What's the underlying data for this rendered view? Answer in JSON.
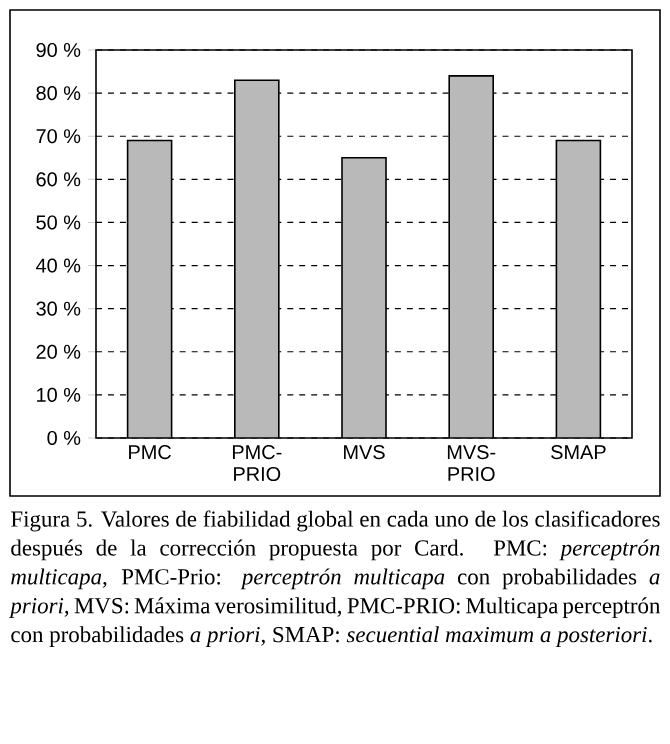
{
  "chart_data": {
    "type": "bar",
    "categories": [
      "PMC",
      "PMC-PRIO",
      "MVS",
      "MVS-PRIO",
      "SMAP"
    ],
    "values": [
      69,
      83,
      65,
      84,
      69
    ],
    "color": "#b9b9b9",
    "ylim": [
      0,
      90
    ],
    "yticks": [
      {
        "value": 0,
        "label": "0 %"
      },
      {
        "value": 10,
        "label": "10 %"
      },
      {
        "value": 20,
        "label": "20 %"
      },
      {
        "value": 30,
        "label": "30 %"
      },
      {
        "value": 40,
        "label": "40 %"
      },
      {
        "value": 50,
        "label": "50 %"
      },
      {
        "value": 60,
        "label": "60 %"
      },
      {
        "value": 70,
        "label": "70 %"
      },
      {
        "value": 80,
        "label": "80 %"
      },
      {
        "value": 90,
        "label": "90 %"
      }
    ],
    "grid": "y",
    "annotations": [
      "Figura 5. Valores de fiabilidad global en cada uno de los clasificadores después de la corrección propuesta por Card. PMC: *perceptrón multicapa*, PMC-Prio: *perceptrón multicapa* con probabilidades *a priori*, MVS: Máxima verosimilitud, PMC-PRIO: Multicapa perceptrón con probabilidades *a priori*, SMAP: *secuential maximum a posteriori*."
    ]
  }
}
